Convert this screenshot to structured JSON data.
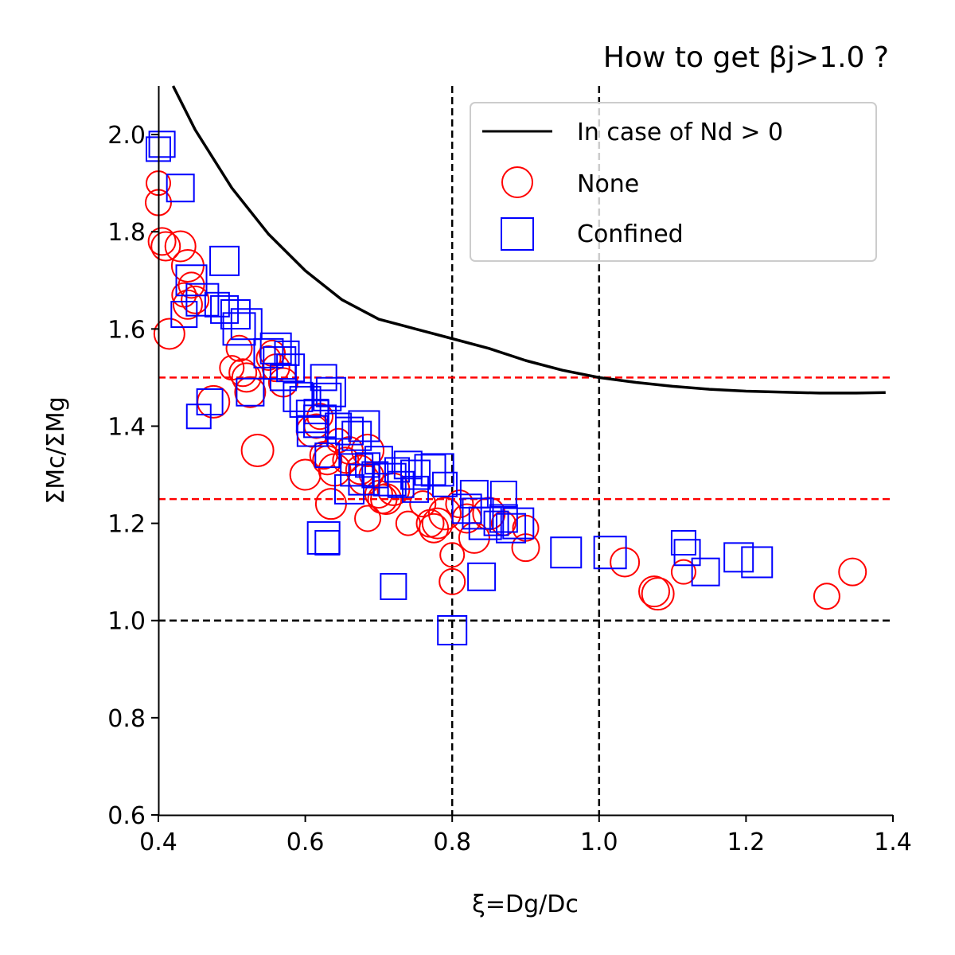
{
  "chart_data": {
    "type": "scatter",
    "title": "How to get βj>1.0 ?",
    "xlabel": "ξ=Dg/Dc",
    "ylabel": "ΣMc/ΣMg",
    "xlim": [
      0.4,
      1.4
    ],
    "ylim": [
      0.6,
      2.1
    ],
    "xticks": [
      "0.4",
      "0.6",
      "0.8",
      "1.0",
      "1.2",
      "1.4"
    ],
    "yticks": [
      "0.6",
      "0.8",
      "1.0",
      "1.2",
      "1.4",
      "1.6",
      "1.8",
      "2.0"
    ],
    "grid": false,
    "legend_position": "top-right",
    "reference_lines": {
      "vertical_dashed_black": [
        0.8,
        1.0
      ],
      "horizontal_dashed_black": [
        1.0
      ],
      "horizontal_dashed_red": [
        1.25,
        1.5
      ]
    },
    "series": [
      {
        "name": "In case of Nd > 0",
        "kind": "line",
        "color": "#000000",
        "points": [
          [
            0.42,
            2.1
          ],
          [
            0.45,
            2.01
          ],
          [
            0.5,
            1.89
          ],
          [
            0.55,
            1.795
          ],
          [
            0.6,
            1.72
          ],
          [
            0.65,
            1.66
          ],
          [
            0.7,
            1.62
          ],
          [
            0.75,
            1.6
          ],
          [
            0.8,
            1.58
          ],
          [
            0.85,
            1.56
          ],
          [
            0.9,
            1.535
          ],
          [
            0.95,
            1.515
          ],
          [
            1.0,
            1.5
          ],
          [
            1.05,
            1.49
          ],
          [
            1.1,
            1.482
          ],
          [
            1.15,
            1.476
          ],
          [
            1.2,
            1.472
          ],
          [
            1.25,
            1.47
          ],
          [
            1.3,
            1.468
          ],
          [
            1.35,
            1.468
          ],
          [
            1.39,
            1.469
          ]
        ]
      },
      {
        "name": "None",
        "kind": "marker",
        "marker": "circle",
        "color": "#ff0000",
        "points": [
          [
            0.4,
            1.9
          ],
          [
            0.4,
            1.86
          ],
          [
            0.405,
            1.78
          ],
          [
            0.41,
            1.77
          ],
          [
            0.43,
            1.77
          ],
          [
            0.44,
            1.73
          ],
          [
            0.435,
            1.67
          ],
          [
            0.445,
            1.69
          ],
          [
            0.45,
            1.66
          ],
          [
            0.44,
            1.65
          ],
          [
            0.415,
            1.59
          ],
          [
            0.475,
            1.45
          ],
          [
            0.5,
            1.52
          ],
          [
            0.51,
            1.56
          ],
          [
            0.515,
            1.51
          ],
          [
            0.52,
            1.5
          ],
          [
            0.525,
            1.47
          ],
          [
            0.535,
            1.35
          ],
          [
            0.55,
            1.54
          ],
          [
            0.555,
            1.55
          ],
          [
            0.56,
            1.52
          ],
          [
            0.57,
            1.49
          ],
          [
            0.6,
            1.3
          ],
          [
            0.61,
            1.39
          ],
          [
            0.615,
            1.4
          ],
          [
            0.62,
            1.42
          ],
          [
            0.625,
            1.34
          ],
          [
            0.63,
            1.33
          ],
          [
            0.635,
            1.24
          ],
          [
            0.64,
            1.31
          ],
          [
            0.645,
            1.37
          ],
          [
            0.655,
            1.33
          ],
          [
            0.66,
            1.35
          ],
          [
            0.675,
            1.31
          ],
          [
            0.68,
            1.29
          ],
          [
            0.685,
            1.35
          ],
          [
            0.69,
            1.3
          ],
          [
            0.685,
            1.21
          ],
          [
            0.7,
            1.26
          ],
          [
            0.705,
            1.25
          ],
          [
            0.71,
            1.25
          ],
          [
            0.72,
            1.27
          ],
          [
            0.74,
            1.2
          ],
          [
            0.76,
            1.24
          ],
          [
            0.77,
            1.2
          ],
          [
            0.775,
            1.19
          ],
          [
            0.78,
            1.2
          ],
          [
            0.79,
            1.22
          ],
          [
            0.8,
            1.135
          ],
          [
            0.8,
            1.08
          ],
          [
            0.81,
            1.24
          ],
          [
            0.82,
            1.21
          ],
          [
            0.83,
            1.17
          ],
          [
            0.85,
            1.22
          ],
          [
            0.87,
            1.2
          ],
          [
            0.9,
            1.19
          ],
          [
            0.9,
            1.15
          ],
          [
            1.035,
            1.12
          ],
          [
            1.075,
            1.06
          ],
          [
            1.08,
            1.055
          ],
          [
            1.115,
            1.1
          ],
          [
            1.31,
            1.05
          ],
          [
            1.345,
            1.1
          ]
        ]
      },
      {
        "name": "Confined",
        "kind": "marker",
        "marker": "square",
        "color": "#0000ff",
        "points": [
          [
            0.4,
            1.97
          ],
          [
            0.405,
            1.98
          ],
          [
            0.43,
            1.89
          ],
          [
            0.49,
            1.74
          ],
          [
            0.445,
            1.7
          ],
          [
            0.46,
            1.66
          ],
          [
            0.48,
            1.65
          ],
          [
            0.435,
            1.63
          ],
          [
            0.49,
            1.64
          ],
          [
            0.505,
            1.63
          ],
          [
            0.52,
            1.61
          ],
          [
            0.51,
            1.6
          ],
          [
            0.455,
            1.42
          ],
          [
            0.47,
            1.45
          ],
          [
            0.525,
            1.47
          ],
          [
            0.55,
            1.55
          ],
          [
            0.56,
            1.56
          ],
          [
            0.565,
            1.53
          ],
          [
            0.575,
            1.55
          ],
          [
            0.57,
            1.5
          ],
          [
            0.58,
            1.52
          ],
          [
            0.59,
            1.46
          ],
          [
            0.6,
            1.45
          ],
          [
            0.61,
            1.42
          ],
          [
            0.615,
            1.43
          ],
          [
            0.625,
            1.5
          ],
          [
            0.63,
            1.46
          ],
          [
            0.635,
            1.47
          ],
          [
            0.61,
            1.39
          ],
          [
            0.62,
            1.41
          ],
          [
            0.63,
            1.34
          ],
          [
            0.645,
            1.4
          ],
          [
            0.66,
            1.39
          ],
          [
            0.67,
            1.38
          ],
          [
            0.68,
            1.4
          ],
          [
            0.67,
            1.31
          ],
          [
            0.685,
            1.32
          ],
          [
            0.695,
            1.3
          ],
          [
            0.7,
            1.33
          ],
          [
            0.66,
            1.27
          ],
          [
            0.68,
            1.29
          ],
          [
            0.715,
            1.29
          ],
          [
            0.725,
            1.31
          ],
          [
            0.73,
            1.28
          ],
          [
            0.74,
            1.32
          ],
          [
            0.75,
            1.3
          ],
          [
            0.77,
            1.31
          ],
          [
            0.78,
            1.31
          ],
          [
            0.79,
            1.28
          ],
          [
            0.75,
            1.27
          ],
          [
            0.83,
            1.26
          ],
          [
            0.82,
            1.23
          ],
          [
            0.835,
            1.22
          ],
          [
            0.845,
            1.2
          ],
          [
            0.86,
            1.2
          ],
          [
            0.87,
            1.26
          ],
          [
            0.87,
            1.21
          ],
          [
            0.88,
            1.19
          ],
          [
            0.89,
            1.2
          ],
          [
            0.625,
            1.17
          ],
          [
            0.63,
            1.16
          ],
          [
            0.72,
            1.07
          ],
          [
            0.84,
            1.09
          ],
          [
            0.8,
            0.98
          ],
          [
            0.955,
            1.14
          ],
          [
            1.015,
            1.14
          ],
          [
            1.115,
            1.16
          ],
          [
            1.12,
            1.14
          ],
          [
            1.145,
            1.1
          ],
          [
            1.19,
            1.13
          ],
          [
            1.215,
            1.12
          ]
        ]
      }
    ]
  }
}
